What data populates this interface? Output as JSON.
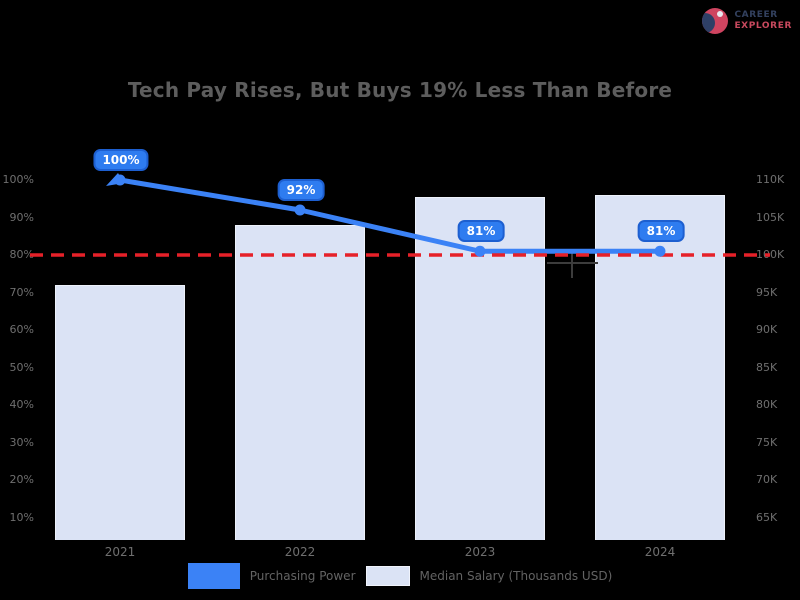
{
  "logo": {
    "line1": "CAREER",
    "line2": "EXPLORER"
  },
  "title": "Tech Pay Rises, But Buys 19% Less Than Before",
  "legend": [
    {
      "label": "Purchasing Power",
      "swatch": "#3b82f6"
    },
    {
      "label": "Median Salary (Thousands USD)",
      "swatch": "#dbe3f5"
    }
  ],
  "colors": {
    "background": "#000000",
    "bar_fill": "#dbe3f5",
    "bar_edge": "#eef2fb",
    "line_blue": "#3b82f6",
    "badge_fill": "#2e7cf0",
    "badge_border": "#1d5fd0",
    "reference_red": "#e62129",
    "text_gray": "#6f6f6f",
    "title_gray": "#5d5d5d"
  },
  "chart_data": {
    "type": "combo_bar_line",
    "title": "Tech Pay Rises, But Buys 19% Less Than Before",
    "categories": [
      "2021",
      "2022",
      "2023",
      "2024"
    ],
    "series": [
      {
        "name": "Purchasing Power",
        "type": "line",
        "unit": "%",
        "values": [
          100,
          92,
          81,
          81
        ],
        "point_labels": [
          "100%",
          "92%",
          "81%",
          "81%"
        ],
        "color": "#3b82f6",
        "axis": "left"
      },
      {
        "name": "Median Salary (Thousands USD)",
        "type": "bar",
        "unit": "K USD",
        "values": [
          96,
          104,
          107.7,
          108
        ],
        "color": "#dbe3f5",
        "axis": "right"
      }
    ],
    "left_axis": {
      "label": "",
      "max": 100,
      "step": 10,
      "ticks": [
        "100%",
        "90%",
        "80%",
        "70%",
        "60%",
        "50%",
        "40%",
        "30%",
        "20%",
        "10%"
      ]
    },
    "right_axis": {
      "label": "",
      "max": 110,
      "step": 5,
      "ticks": [
        "110K",
        "105K",
        "100K",
        "95K",
        "90K",
        "85K",
        "80K",
        "75K",
        "70K",
        "65K"
      ]
    },
    "reference_line": {
      "value": 80,
      "axis": "left",
      "color": "#e62129",
      "style": "dashed"
    },
    "grid": false,
    "legend_position": "bottom"
  }
}
